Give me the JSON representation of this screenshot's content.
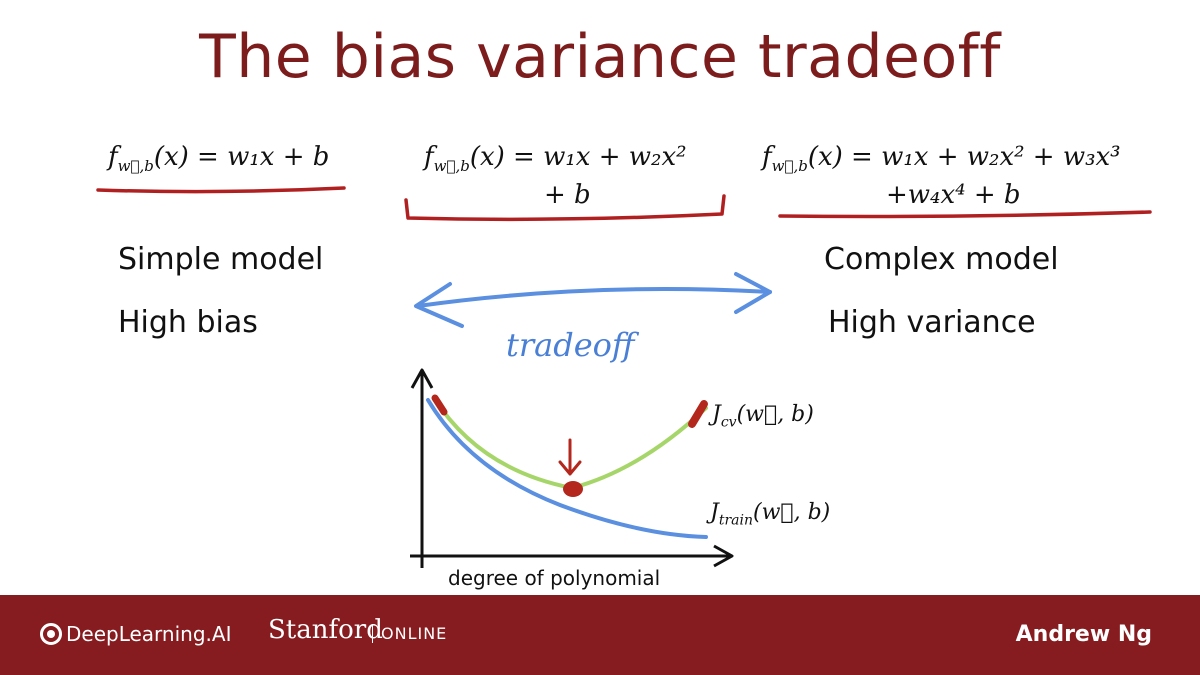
{
  "title": "The bias variance tradeoff",
  "models": {
    "simple": {
      "formula_f": "f",
      "formula_sub": "w⃗,b",
      "formula_rhs": "(x) = w₁x + b",
      "label": "Simple model",
      "property": "High bias"
    },
    "middle": {
      "formula_f": "f",
      "formula_sub": "w⃗,b",
      "formula_rhs": "(x) = w₁x + w₂x²",
      "formula_line2": "+ b"
    },
    "complex": {
      "formula_f": "f",
      "formula_sub": "w⃗,b",
      "formula_rhs": "(x) = w₁x + w₂x² + w₃x³",
      "formula_line2": "+w₄x⁴ + b",
      "label": "Complex model",
      "property": "High variance"
    }
  },
  "tradeoff_label": "tradeoff",
  "graph": {
    "jcv_label": "J",
    "jcv_sub": "cv",
    "jcv_args": "(w⃗, b)",
    "jtrain_label": "J",
    "jtrain_sub": "train",
    "jtrain_args": "(w⃗, b)",
    "xlabel": "degree of polynomial"
  },
  "colors": {
    "title": "#7d1c1c",
    "footer": "#861c1f",
    "underline": "#b02020",
    "arrow": "#5b8fe0",
    "jcv_curve": "#a6d66a",
    "jtrain_curve": "#5b8fe0",
    "marker": "#b4271c"
  },
  "footer": {
    "deeplearning": "DeepLearning.AI",
    "stanford": "Stanford",
    "online": "ONLINE",
    "presenter": "Andrew Ng"
  }
}
